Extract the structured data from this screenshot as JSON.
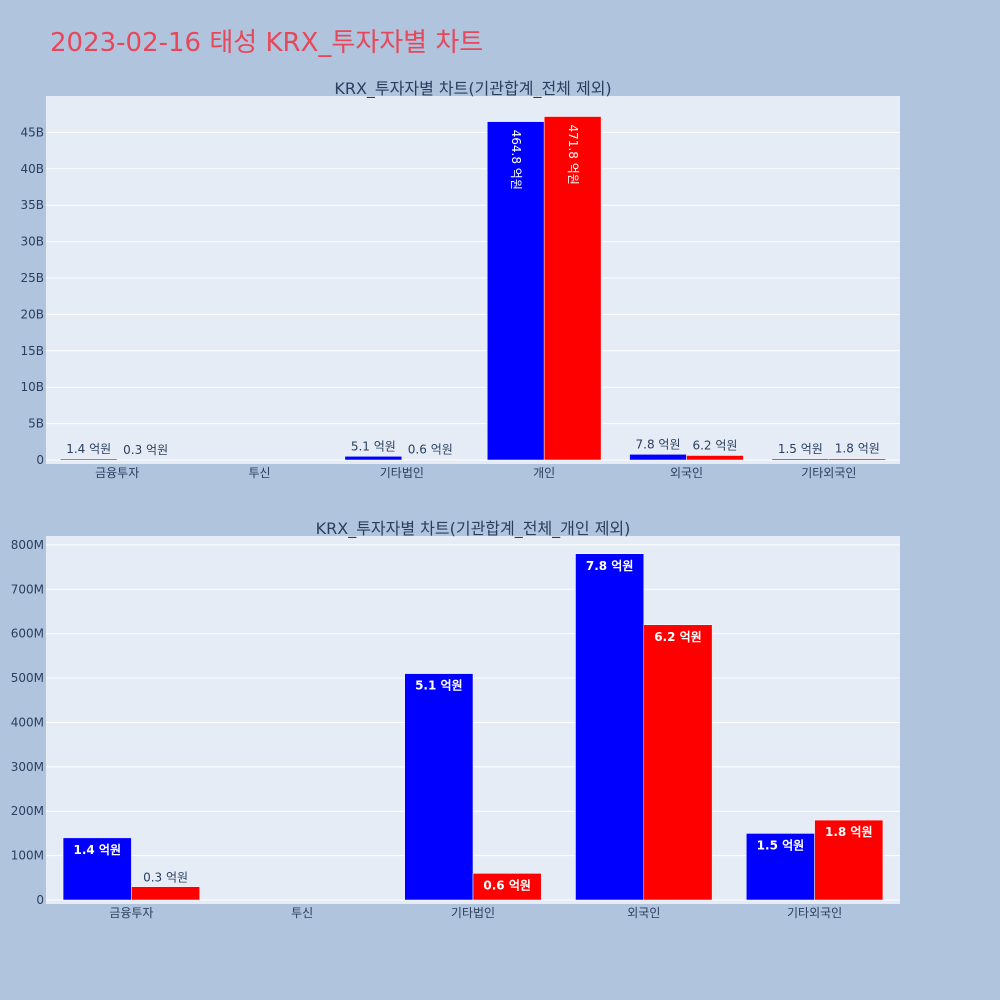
{
  "title": "2023-02-16 태성 KRX_투자자별 차트",
  "colors": {
    "buy": "#0000ff",
    "sell": "#ff0000",
    "title": "#e8475a",
    "plot_bg": "#e5ecf6",
    "page_bg": "#b0c4de"
  },
  "chart_data": [
    {
      "type": "bar",
      "title": "KRX_투자자별 차트(기관합계_전체 제외)",
      "categories": [
        "금융투자",
        "투신",
        "기타법인",
        "개인",
        "외국인",
        "기타외국인"
      ],
      "series": [
        {
          "values": [
            140000000,
            0,
            510000000,
            46480000000,
            780000000,
            150000000
          ],
          "labels": [
            "1.4 억원",
            "",
            "5.1 억원",
            "464.8 억원",
            "7.8 억원",
            "1.5 억원"
          ]
        },
        {
          "values": [
            30000000,
            0,
            60000000,
            47180000000,
            620000000,
            180000000
          ],
          "labels": [
            "0.3 억원",
            "",
            "0.6 억원",
            "471.8 억원",
            "6.2 억원",
            "1.8 억원"
          ]
        }
      ],
      "ylim": [
        0,
        50000000000
      ],
      "yticks": [
        0,
        5000000000,
        10000000000,
        15000000000,
        20000000000,
        25000000000,
        30000000000,
        35000000000,
        40000000000,
        45000000000
      ],
      "ytick_labels": [
        "0",
        "5B",
        "10B",
        "15B",
        "20B",
        "25B",
        "30B",
        "35B",
        "40B",
        "45B"
      ],
      "grid": true
    },
    {
      "type": "bar",
      "title": "KRX_투자자별 차트(기관합계_전체_개인 제외)",
      "categories": [
        "금융투자",
        "투신",
        "기타법인",
        "외국인",
        "기타외국인"
      ],
      "series": [
        {
          "values": [
            140000000,
            0,
            510000000,
            780000000,
            150000000
          ],
          "labels": [
            "1.4 억원",
            "",
            "5.1 억원",
            "7.8 억원",
            "1.5 억원"
          ]
        },
        {
          "values": [
            30000000,
            0,
            60000000,
            620000000,
            180000000
          ],
          "labels": [
            "0.3 억원",
            "",
            "0.6 억원",
            "6.2 억원",
            "1.8 억원"
          ]
        }
      ],
      "ylim": [
        0,
        820000000
      ],
      "yticks": [
        0,
        100000000,
        200000000,
        300000000,
        400000000,
        500000000,
        600000000,
        700000000,
        800000000
      ],
      "ytick_labels": [
        "0",
        "100M",
        "200M",
        "300M",
        "400M",
        "500M",
        "600M",
        "700M",
        "800M"
      ],
      "grid": true
    }
  ]
}
